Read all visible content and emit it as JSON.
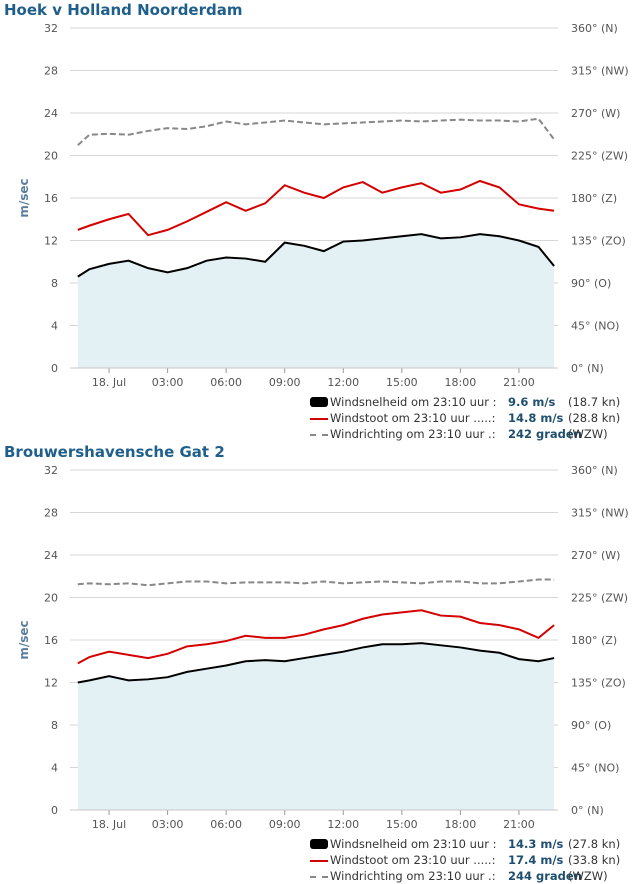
{
  "charts_meta": {
    "ylabel": "m/sec",
    "left_ticks": [
      "0",
      "4",
      "8",
      "12",
      "16",
      "20",
      "24",
      "28",
      "32"
    ],
    "right_ticks": [
      "0° (N)",
      "45° (NO)",
      "90° (O)",
      "135° (ZO)",
      "180° (Z)",
      "225° (ZW)",
      "270° (W)",
      "315° (NW)",
      "360° (N)"
    ],
    "x_ticks": [
      "18. Jul",
      "03:00",
      "06:00",
      "09:00",
      "12:00",
      "15:00",
      "18:00",
      "21:00"
    ],
    "colors": {
      "speed": "#000000",
      "gust": "#d40000",
      "direction": "#888888",
      "area": "#e4f1f4",
      "grid": "#d6d6d6",
      "title": "#1f5f8b"
    }
  },
  "stations": [
    {
      "title": "Hoek v Holland Noorderdam",
      "legend": [
        {
          "label": "Windsnelheid om 23:10 uur :",
          "value": "9.6 m/s",
          "extra": "(18.7 kn)"
        },
        {
          "label": "Windstoot om 23:10 uur .....:",
          "value": "14.8 m/s",
          "extra": "(28.8 kn)"
        },
        {
          "label": "Windrichting om 23:10 uur .:",
          "value": "242 graden",
          "extra": "(WZW)"
        }
      ]
    },
    {
      "title": "Brouwershavensche Gat 2",
      "legend": [
        {
          "label": "Windsnelheid om 23:10 uur :",
          "value": "14.3 m/s",
          "extra": "(27.8 kn)"
        },
        {
          "label": "Windstoot om 23:10 uur .....:",
          "value": "17.4 m/s",
          "extra": "(33.8 kn)"
        },
        {
          "label": "Windrichting om 23:10 uur .:",
          "value": "244 graden",
          "extra": "(WZW)"
        }
      ]
    }
  ],
  "chart_data": [
    {
      "type": "area",
      "title": "Hoek v Holland Noorderdam",
      "ylabel": "m/sec",
      "ylim": [
        0,
        32
      ],
      "y2lim": [
        0,
        360
      ],
      "x_hours": [
        -1.6,
        -1,
        0,
        1,
        2,
        3,
        4,
        5,
        6,
        7,
        8,
        9,
        10,
        11,
        12,
        13,
        14,
        15,
        16,
        17,
        18,
        19,
        20,
        21,
        22,
        22.8
      ],
      "series": [
        {
          "name": "Windsnelheid",
          "unit": "m/s",
          "values": [
            8.6,
            9.3,
            9.8,
            10.1,
            9.4,
            9.0,
            9.4,
            10.1,
            10.4,
            10.3,
            10.0,
            11.8,
            11.5,
            11.0,
            11.9,
            12.0,
            12.2,
            12.4,
            12.6,
            12.2,
            12.3,
            12.6,
            12.4,
            12.0,
            11.4,
            9.6
          ]
        },
        {
          "name": "Windstoot",
          "unit": "m/s",
          "values": [
            13.0,
            13.4,
            14.0,
            14.5,
            12.5,
            13.0,
            13.8,
            14.7,
            15.6,
            14.8,
            15.5,
            17.2,
            16.5,
            16.0,
            17.0,
            17.5,
            16.5,
            17.0,
            17.4,
            16.5,
            16.8,
            17.6,
            17.0,
            15.4,
            15.0,
            14.8
          ]
        },
        {
          "name": "Windrichting",
          "unit": "graden",
          "axis": "right",
          "values": [
            236,
            247,
            248,
            247,
            251,
            254,
            253,
            256,
            261,
            258,
            260,
            262,
            260,
            258,
            259,
            260,
            261,
            262,
            261,
            262,
            263,
            262,
            262,
            261,
            264,
            242
          ]
        }
      ]
    },
    {
      "type": "area",
      "title": "Brouwershavensche Gat 2",
      "ylabel": "m/sec",
      "ylim": [
        0,
        32
      ],
      "y2lim": [
        0,
        360
      ],
      "x_hours": [
        -1.6,
        -1,
        0,
        1,
        2,
        3,
        4,
        5,
        6,
        7,
        8,
        9,
        10,
        11,
        12,
        13,
        14,
        15,
        16,
        17,
        18,
        19,
        20,
        21,
        22,
        22.8
      ],
      "series": [
        {
          "name": "Windsnelheid",
          "unit": "m/s",
          "values": [
            12.0,
            12.2,
            12.6,
            12.2,
            12.3,
            12.5,
            13.0,
            13.3,
            13.6,
            14.0,
            14.1,
            14.0,
            14.3,
            14.6,
            14.9,
            15.3,
            15.6,
            15.6,
            15.7,
            15.5,
            15.3,
            15.0,
            14.8,
            14.2,
            14.0,
            14.3
          ]
        },
        {
          "name": "Windstoot",
          "unit": "m/s",
          "values": [
            13.8,
            14.4,
            14.9,
            14.6,
            14.3,
            14.7,
            15.4,
            15.6,
            15.9,
            16.4,
            16.2,
            16.2,
            16.5,
            17.0,
            17.4,
            18.0,
            18.4,
            18.6,
            18.8,
            18.3,
            18.2,
            17.6,
            17.4,
            17.0,
            16.2,
            17.4
          ]
        },
        {
          "name": "Windrichting",
          "unit": "graden",
          "axis": "right",
          "values": [
            239,
            240,
            239,
            240,
            238,
            240,
            242,
            242,
            240,
            241,
            241,
            241,
            240,
            242,
            240,
            241,
            242,
            241,
            240,
            242,
            242,
            240,
            240,
            242,
            244,
            244
          ]
        }
      ]
    }
  ]
}
